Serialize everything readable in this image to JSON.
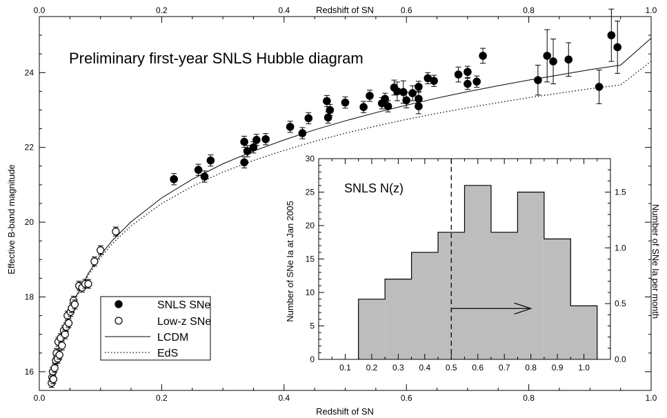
{
  "chart_data": [
    {
      "type": "scatter",
      "title": "Preliminary first-year SNLS Hubble diagram",
      "xlabel": "Redshift of SN",
      "ylabel": "Effective B-band magnitude",
      "top_xlabel": "Redshift of SN",
      "xlim": [
        0.0,
        1.0
      ],
      "ylim": [
        15.5,
        25.5
      ],
      "x_ticks": [
        "0.0",
        "0.2",
        "0.4",
        "0.6",
        "0.8",
        "1.0"
      ],
      "y_ticks": [
        "16",
        "18",
        "20",
        "22",
        "24"
      ],
      "legend": {
        "placement": "bottom-left",
        "entries": [
          {
            "label": "SNLS SNe",
            "marker": "filled-circle"
          },
          {
            "label": "Low-z SNe",
            "marker": "open-circle"
          },
          {
            "label": "LCDM",
            "line": "solid"
          },
          {
            "label": "EdS",
            "line": "dotted"
          }
        ]
      },
      "series": [
        {
          "name": "SNLS SNe",
          "marker": "filled-circle",
          "points": [
            [
              0.22,
              21.15,
              0.15
            ],
            [
              0.26,
              21.4,
              0.15
            ],
            [
              0.27,
              21.22,
              0.15
            ],
            [
              0.28,
              21.65,
              0.15
            ],
            [
              0.335,
              21.6,
              0.15
            ],
            [
              0.335,
              22.15,
              0.15
            ],
            [
              0.34,
              21.9,
              0.15
            ],
            [
              0.35,
              22.0,
              0.15
            ],
            [
              0.355,
              22.2,
              0.15
            ],
            [
              0.37,
              22.22,
              0.15
            ],
            [
              0.41,
              22.55,
              0.15
            ],
            [
              0.43,
              22.38,
              0.15
            ],
            [
              0.44,
              22.78,
              0.15
            ],
            [
              0.47,
              23.24,
              0.15
            ],
            [
              0.472,
              22.8,
              0.15
            ],
            [
              0.475,
              23.0,
              0.15
            ],
            [
              0.5,
              23.2,
              0.15
            ],
            [
              0.53,
              23.08,
              0.15
            ],
            [
              0.54,
              23.38,
              0.15
            ],
            [
              0.56,
              23.18,
              0.15
            ],
            [
              0.565,
              23.3,
              0.15
            ],
            [
              0.57,
              23.1,
              0.15
            ],
            [
              0.58,
              23.6,
              0.2
            ],
            [
              0.585,
              23.5,
              0.25
            ],
            [
              0.595,
              23.48,
              0.3
            ],
            [
              0.6,
              23.26,
              0.2
            ],
            [
              0.61,
              23.45,
              0.2
            ],
            [
              0.62,
              23.3,
              0.2
            ],
            [
              0.62,
              23.1,
              0.2
            ],
            [
              0.62,
              23.62,
              0.15
            ],
            [
              0.635,
              23.85,
              0.15
            ],
            [
              0.645,
              23.78,
              0.15
            ],
            [
              0.685,
              23.95,
              0.2
            ],
            [
              0.7,
              23.7,
              0.15
            ],
            [
              0.7,
              24.02,
              0.15
            ],
            [
              0.715,
              23.76,
              0.15
            ],
            [
              0.725,
              24.45,
              0.2
            ],
            [
              0.815,
              23.8,
              0.4
            ],
            [
              0.83,
              24.45,
              0.7
            ],
            [
              0.84,
              24.3,
              0.6
            ],
            [
              0.865,
              24.35,
              0.45
            ],
            [
              0.915,
              23.62,
              0.45
            ],
            [
              0.935,
              25.0,
              0.7
            ],
            [
              0.945,
              24.68,
              0.7
            ]
          ]
        },
        {
          "name": "Low-z SNe",
          "marker": "open-circle",
          "points": [
            [
              0.02,
              15.7,
              0.12
            ],
            [
              0.021,
              15.85,
              0.12
            ],
            [
              0.022,
              16.0,
              0.12
            ],
            [
              0.023,
              15.8,
              0.12
            ],
            [
              0.025,
              16.1,
              0.12
            ],
            [
              0.027,
              16.3,
              0.12
            ],
            [
              0.028,
              16.5,
              0.12
            ],
            [
              0.03,
              16.35,
              0.12
            ],
            [
              0.031,
              16.8,
              0.12
            ],
            [
              0.033,
              16.45,
              0.12
            ],
            [
              0.035,
              16.9,
              0.12
            ],
            [
              0.037,
              16.7,
              0.12
            ],
            [
              0.04,
              17.1,
              0.12
            ],
            [
              0.042,
              17.0,
              0.12
            ],
            [
              0.044,
              17.2,
              0.12
            ],
            [
              0.046,
              17.5,
              0.12
            ],
            [
              0.048,
              17.3,
              0.12
            ],
            [
              0.051,
              17.6,
              0.12
            ],
            [
              0.053,
              17.7,
              0.12
            ],
            [
              0.056,
              17.9,
              0.12
            ],
            [
              0.058,
              17.8,
              0.12
            ],
            [
              0.065,
              18.3,
              0.12
            ],
            [
              0.07,
              18.25,
              0.12
            ],
            [
              0.075,
              18.35,
              0.12
            ],
            [
              0.08,
              18.35,
              0.12
            ],
            [
              0.09,
              18.95,
              0.12
            ],
            [
              0.1,
              19.25,
              0.12
            ],
            [
              0.125,
              19.75,
              0.12
            ]
          ]
        },
        {
          "name": "LCDM",
          "line": "solid",
          "curve": [
            [
              0.02,
              15.62
            ],
            [
              0.03,
              16.5
            ],
            [
              0.04,
              17.13
            ],
            [
              0.05,
              17.61
            ],
            [
              0.06,
              18.01
            ],
            [
              0.08,
              18.63
            ],
            [
              0.1,
              19.12
            ],
            [
              0.12,
              19.52
            ],
            [
              0.15,
              20.01
            ],
            [
              0.2,
              20.65
            ],
            [
              0.25,
              21.15
            ],
            [
              0.3,
              21.56
            ],
            [
              0.35,
              21.9
            ],
            [
              0.4,
              22.2
            ],
            [
              0.45,
              22.47
            ],
            [
              0.5,
              22.71
            ],
            [
              0.55,
              22.93
            ],
            [
              0.6,
              23.13
            ],
            [
              0.65,
              23.32
            ],
            [
              0.7,
              23.49
            ],
            [
              0.75,
              23.65
            ],
            [
              0.8,
              23.8
            ],
            [
              0.85,
              23.94
            ],
            [
              0.9,
              24.08
            ],
            [
              0.95,
              24.2
            ],
            [
              1.0,
              24.92
            ]
          ]
        },
        {
          "name": "EdS",
          "line": "dotted",
          "curve": [
            [
              0.02,
              15.62
            ],
            [
              0.03,
              16.49
            ],
            [
              0.04,
              17.11
            ],
            [
              0.05,
              17.59
            ],
            [
              0.06,
              17.98
            ],
            [
              0.08,
              18.58
            ],
            [
              0.1,
              19.05
            ],
            [
              0.12,
              19.44
            ],
            [
              0.15,
              19.9
            ],
            [
              0.2,
              20.5
            ],
            [
              0.25,
              20.96
            ],
            [
              0.3,
              21.34
            ],
            [
              0.35,
              21.65
            ],
            [
              0.4,
              21.92
            ],
            [
              0.45,
              22.16
            ],
            [
              0.5,
              22.38
            ],
            [
              0.55,
              22.57
            ],
            [
              0.6,
              22.75
            ],
            [
              0.65,
              22.91
            ],
            [
              0.7,
              23.06
            ],
            [
              0.75,
              23.2
            ],
            [
              0.8,
              23.33
            ],
            [
              0.85,
              23.45
            ],
            [
              0.9,
              23.57
            ],
            [
              0.95,
              23.67
            ],
            [
              1.0,
              24.3
            ]
          ]
        }
      ]
    },
    {
      "type": "bar",
      "title": "SNLS N(z)",
      "ylabel": "Number of SNe Ia at Jan 2005",
      "y2label": "Number of SNe Ia per month",
      "xlim": [
        0.0,
        1.1
      ],
      "ylim": [
        0,
        30
      ],
      "y2lim": [
        0,
        1.8
      ],
      "x_ticks": [
        "0.1",
        "0.2",
        "0.3",
        "0.4",
        "0.5",
        "0.6",
        "0.7",
        "0.8",
        "0.9",
        "1.0"
      ],
      "y_ticks": [
        "0",
        "5",
        "10",
        "15",
        "20",
        "25",
        "30"
      ],
      "y2_ticks": [
        "0.0",
        "0.5",
        "1.0",
        "1.5"
      ],
      "bin_width": 0.1,
      "bins": [
        {
          "left": 0.15,
          "value": 9
        },
        {
          "left": 0.25,
          "value": 12
        },
        {
          "left": 0.35,
          "value": 16
        },
        {
          "left": 0.45,
          "value": 19
        },
        {
          "left": 0.55,
          "value": 26
        },
        {
          "left": 0.65,
          "value": 19
        },
        {
          "left": 0.75,
          "value": 25
        },
        {
          "left": 0.85,
          "value": 18
        },
        {
          "left": 0.95,
          "value": 8
        }
      ],
      "vline_x": 0.5,
      "arrow": {
        "from_x": 0.5,
        "to_x": 0.8,
        "y": 7.6
      }
    }
  ]
}
